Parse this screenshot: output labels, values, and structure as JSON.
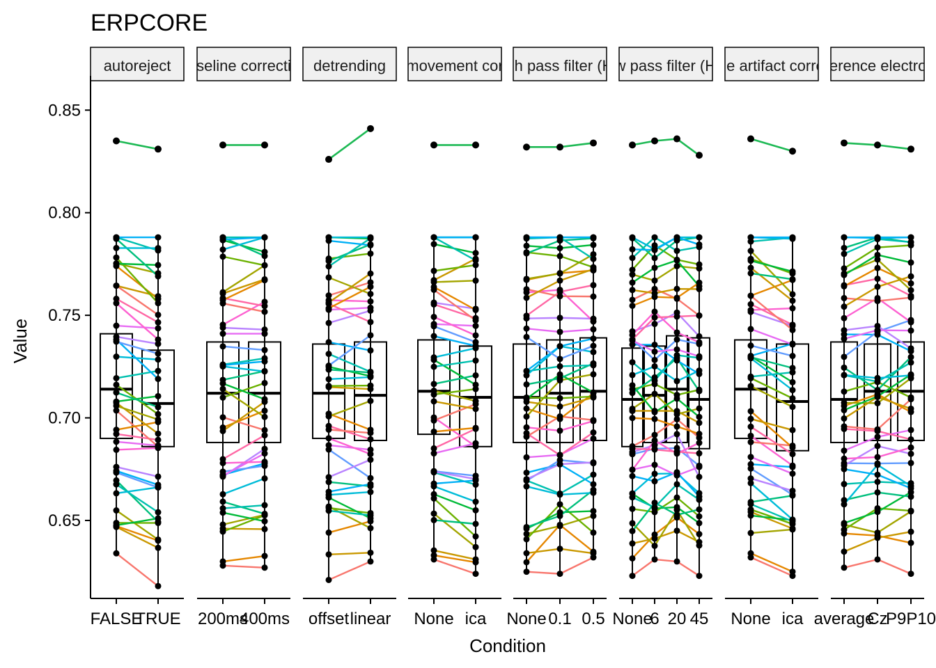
{
  "chart_data": {
    "type": "faceted line + box plot",
    "title": "ERPCORE",
    "xlabel": "Condition",
    "ylabel": "Value",
    "ylim": [
      0.612,
      0.864
    ],
    "yticks": [
      "0.65",
      "0.70",
      "0.75",
      "0.80",
      "0.85"
    ],
    "grid": false,
    "legend": "none",
    "palette": [
      "#F8766D",
      "#E58700",
      "#C99800",
      "#A3A500",
      "#6BB100",
      "#00BA38",
      "#00BF7D",
      "#00C0AF",
      "#00BCD8",
      "#00B0F6",
      "#619CFF",
      "#B983FF",
      "#E76BF3",
      "#FD61D1",
      "#FF67A4"
    ],
    "highlight_color": "#1DB954",
    "facets": [
      {
        "strip": "autoreject",
        "levels": [
          "FALSE",
          "TRUE"
        ],
        "box": [
          {
            "q1": 0.69,
            "med": 0.714,
            "q3": 0.741
          },
          {
            "q1": 0.686,
            "med": 0.707,
            "q3": 0.733
          }
        ],
        "outlier": [
          0.835,
          0.831
        ],
        "lo": [
          0.634,
          0.618
        ]
      },
      {
        "strip": "baseline correction",
        "levels": [
          "200ms",
          "400ms"
        ],
        "box": [
          {
            "q1": 0.688,
            "med": 0.712,
            "q3": 0.737
          },
          {
            "q1": 0.688,
            "med": 0.712,
            "q3": 0.737
          }
        ],
        "outlier": [
          0.833,
          0.833
        ],
        "lo": [
          0.628,
          0.627
        ]
      },
      {
        "strip": "detrending",
        "levels": [
          "offset",
          "linear"
        ],
        "box": [
          {
            "q1": 0.69,
            "med": 0.712,
            "q3": 0.736
          },
          {
            "q1": 0.689,
            "med": 0.711,
            "q3": 0.737
          }
        ],
        "outlier": [
          0.826,
          0.841
        ],
        "lo": [
          0.621,
          0.63
        ]
      },
      {
        "strip": "ocular movement correction",
        "levels": [
          "None",
          "ica"
        ],
        "box": [
          {
            "q1": 0.692,
            "med": 0.713,
            "q3": 0.738
          },
          {
            "q1": 0.686,
            "med": 0.71,
            "q3": 0.735
          }
        ],
        "outlier": [
          0.833,
          0.833
        ],
        "lo": [
          0.631,
          0.624
        ]
      },
      {
        "strip": "high pass filter (Hz)",
        "levels": [
          "None",
          "0.1",
          "0.5"
        ],
        "box": [
          {
            "q1": 0.688,
            "med": 0.71,
            "q3": 0.736
          },
          {
            "q1": 0.688,
            "med": 0.712,
            "q3": 0.738
          },
          {
            "q1": 0.689,
            "med": 0.713,
            "q3": 0.739
          }
        ],
        "outlier": [
          0.832,
          0.832,
          0.834
        ],
        "lo": [
          0.625,
          0.624,
          0.632
        ]
      },
      {
        "strip": "low pass filter (Hz)",
        "levels": [
          "None",
          "6",
          "20",
          "45"
        ],
        "box": [
          {
            "q1": 0.686,
            "med": 0.709,
            "q3": 0.734
          },
          {
            "q1": 0.688,
            "med": 0.711,
            "q3": 0.735
          },
          {
            "q1": 0.688,
            "med": 0.714,
            "q3": 0.74
          },
          {
            "q1": 0.685,
            "med": 0.709,
            "q3": 0.739
          }
        ],
        "outlier": [
          0.833,
          0.835,
          0.836,
          0.828
        ],
        "lo": [
          0.623,
          0.631,
          0.63,
          0.623
        ]
      },
      {
        "strip": "muscle artifact correction",
        "levels": [
          "None",
          "ica"
        ],
        "box": [
          {
            "q1": 0.69,
            "med": 0.714,
            "q3": 0.738
          },
          {
            "q1": 0.684,
            "med": 0.708,
            "q3": 0.736
          }
        ],
        "outlier": [
          0.836,
          0.83
        ],
        "lo": [
          0.632,
          0.623
        ]
      },
      {
        "strip": "reference electrode",
        "levels": [
          "average",
          "Cz",
          "P9P10"
        ],
        "box": [
          {
            "q1": 0.688,
            "med": 0.709,
            "q3": 0.737
          },
          {
            "q1": 0.689,
            "med": 0.713,
            "q3": 0.736
          },
          {
            "q1": 0.689,
            "med": 0.713,
            "q3": 0.737
          }
        ],
        "outlier": [
          0.834,
          0.833,
          0.831
        ],
        "lo": [
          0.627,
          0.631,
          0.624
        ]
      }
    ]
  }
}
